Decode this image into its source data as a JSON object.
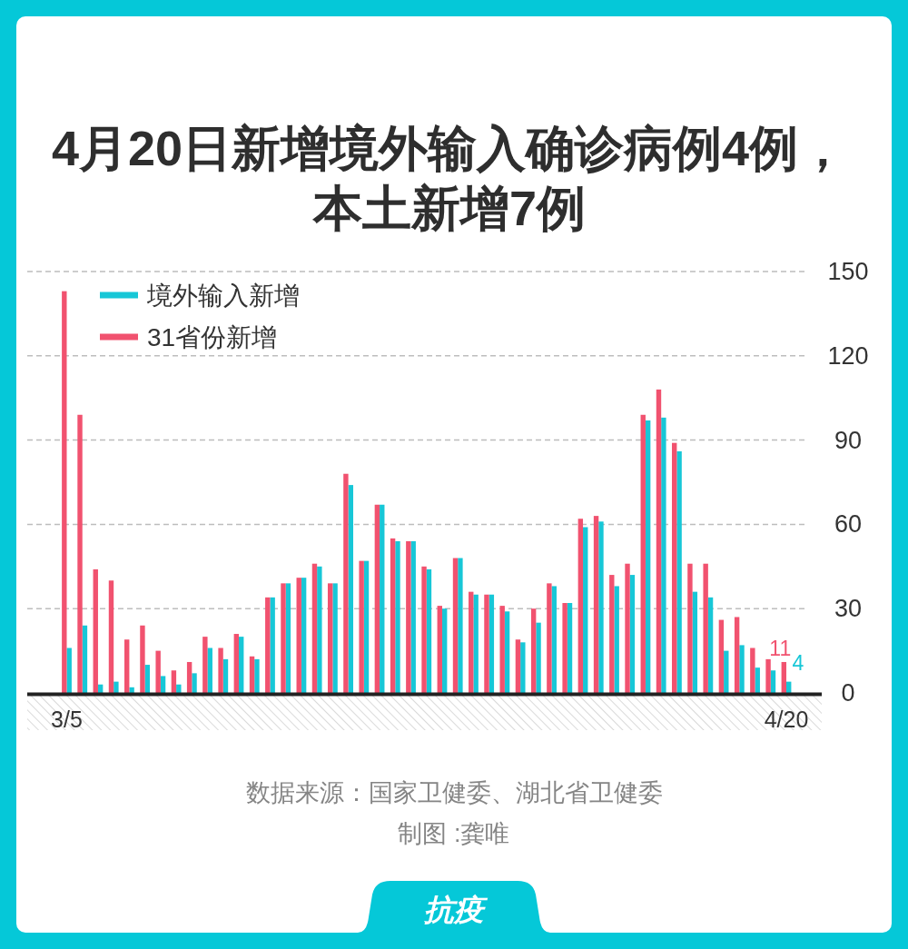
{
  "chart_data": {
    "type": "bar",
    "title": "4月20日新增境外输入确诊病例4例，本土新增7例",
    "categories": [
      "3/5",
      null,
      null,
      null,
      null,
      null,
      null,
      null,
      null,
      null,
      null,
      null,
      null,
      null,
      null,
      null,
      null,
      null,
      null,
      null,
      null,
      null,
      null,
      null,
      null,
      null,
      null,
      null,
      null,
      null,
      null,
      null,
      null,
      null,
      null,
      null,
      null,
      null,
      null,
      null,
      null,
      null,
      null,
      null,
      null,
      null,
      "4/20"
    ],
    "series": [
      {
        "name": "境外输入新增",
        "color": "#17c7d7",
        "values": [
          16,
          24,
          3,
          4,
          2,
          10,
          6,
          3,
          7,
          16,
          12,
          20,
          12,
          34,
          39,
          41,
          45,
          39,
          74,
          47,
          67,
          54,
          54,
          44,
          30,
          48,
          35,
          35,
          29,
          18,
          25,
          38,
          32,
          59,
          61,
          38,
          42,
          97,
          98,
          86,
          36,
          34,
          15,
          17,
          9,
          8,
          4
        ],
        "value_labels": [
          null,
          null,
          null,
          null,
          null,
          null,
          null,
          null,
          null,
          null,
          null,
          null,
          null,
          null,
          null,
          null,
          null,
          null,
          null,
          null,
          null,
          null,
          null,
          null,
          null,
          null,
          null,
          null,
          null,
          null,
          null,
          null,
          null,
          null,
          null,
          null,
          null,
          null,
          null,
          null,
          null,
          null,
          null,
          null,
          null,
          null,
          "4"
        ]
      },
      {
        "name": "31省份新增",
        "color": "#f1526f",
        "values": [
          143,
          99,
          44,
          40,
          19,
          24,
          15,
          8,
          11,
          20,
          16,
          21,
          13,
          34,
          39,
          41,
          46,
          39,
          78,
          47,
          67,
          55,
          54,
          45,
          31,
          48,
          36,
          35,
          31,
          19,
          30,
          39,
          32,
          62,
          63,
          42,
          46,
          99,
          108,
          89,
          46,
          46,
          26,
          27,
          16,
          12,
          11
        ],
        "value_labels": [
          null,
          null,
          null,
          null,
          null,
          null,
          null,
          null,
          null,
          null,
          null,
          null,
          null,
          null,
          null,
          null,
          null,
          null,
          null,
          null,
          null,
          null,
          null,
          null,
          null,
          null,
          null,
          null,
          null,
          null,
          null,
          null,
          null,
          null,
          null,
          null,
          null,
          null,
          null,
          null,
          null,
          null,
          null,
          null,
          null,
          null,
          "11"
        ]
      }
    ],
    "ylim": [
      0,
      150
    ],
    "yticks": [
      0,
      30,
      60,
      90,
      120,
      150
    ],
    "grid": "y",
    "legend": "top left",
    "annotations": [
      "数据来源：国家卫健委、湖北省卫健委",
      "制图 :龚唯",
      "抗疫"
    ]
  }
}
